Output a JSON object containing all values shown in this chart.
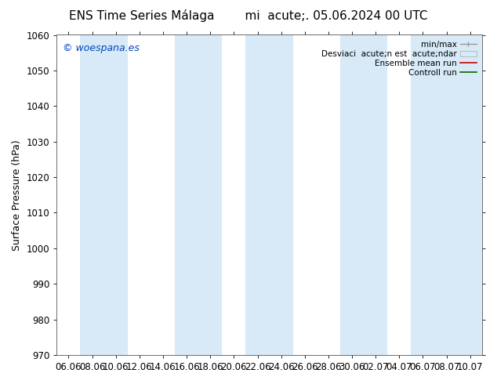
{
  "title_left": "ENS Time Series Málaga",
  "title_right": "mi  acute;. 05.06.2024 00 UTC",
  "ylabel": "Surface Pressure (hPa)",
  "ylim": [
    970,
    1060
  ],
  "yticks": [
    970,
    980,
    990,
    1000,
    1010,
    1020,
    1030,
    1040,
    1050,
    1060
  ],
  "xtick_labels": [
    "06.06",
    "08.06",
    "10.06",
    "12.06",
    "14.06",
    "16.06",
    "18.06",
    "20.06",
    "22.06",
    "24.06",
    "26.06",
    "28.06",
    "30.06",
    "02.07",
    "04.07",
    "06.07",
    "08.07",
    "10.07"
  ],
  "background_color": "#ffffff",
  "plot_bg_color": "#ffffff",
  "shaded_color": "#d8eaf8",
  "band_xranges": [
    [
      0.5,
      2.5
    ],
    [
      4.5,
      6.5
    ],
    [
      7.5,
      9.5
    ],
    [
      11.5,
      13.5
    ],
    [
      14.5,
      17.5
    ]
  ],
  "watermark_text": "© woespana.es",
  "watermark_color": "#0044bb",
  "legend_labels": [
    "min/max",
    "Desviaci  acute;n est  acute;ndar",
    "Ensemble mean run",
    "Controll run"
  ],
  "legend_colors_line": [
    "#aaaaaa",
    "#bbccdd",
    "#dd0000",
    "#008800"
  ],
  "title_fontsize": 11,
  "label_fontsize": 9,
  "tick_fontsize": 8.5,
  "watermark_fontsize": 9
}
